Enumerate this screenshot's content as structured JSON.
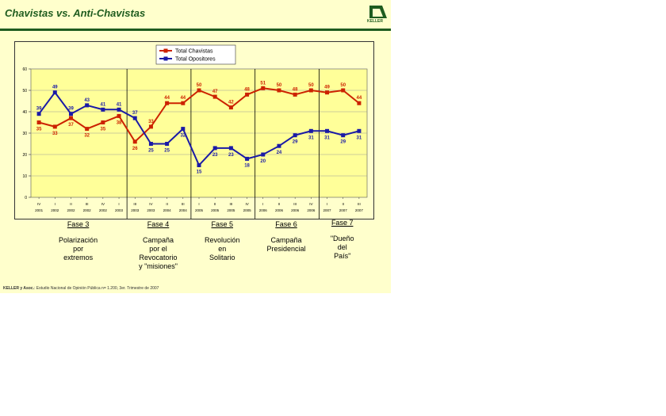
{
  "title": "Chavistas vs. Anti-Chavistas",
  "logo_text": "KELLER",
  "source": {
    "bold": "KELLER y Asoc.",
    "rest": ": Estudio Nacional de Opinión Pública n= 1.200, 3er. Trimestre de 2007"
  },
  "phases": [
    {
      "name": "Fase 3",
      "desc": [
        "Polarización",
        "por",
        "extremos"
      ]
    },
    {
      "name": "Fase 4",
      "desc": [
        "Campaña",
        "por el",
        "Revocatorio",
        "y \"misiones\""
      ]
    },
    {
      "name": "Fase 5",
      "desc": [
        "Revolución",
        "en",
        "Solitario"
      ]
    },
    {
      "name": "Fase 6",
      "desc": [
        "Campaña",
        "Presidencial"
      ]
    },
    {
      "name": "Fase 7",
      "desc": [
        "\"Dueño",
        "del",
        "País\""
      ]
    }
  ],
  "chart_data": {
    "type": "line",
    "ylim": [
      0,
      60
    ],
    "yticks": [
      0,
      10,
      20,
      30,
      40,
      50,
      60
    ],
    "grid": true,
    "legend": "top-center",
    "categories": [
      [
        "IV",
        "2001"
      ],
      [
        "I",
        "2002"
      ],
      [
        "II",
        "2002"
      ],
      [
        "III",
        "2002"
      ],
      [
        "IV",
        "2002"
      ],
      [
        "I",
        "2003"
      ],
      [
        "III",
        "2003"
      ],
      [
        "IV",
        "2003"
      ],
      [
        "II",
        "2004"
      ],
      [
        "III",
        "2004"
      ],
      [
        "I",
        "2005"
      ],
      [
        "II",
        "2005"
      ],
      [
        "III",
        "2005"
      ],
      [
        "IV",
        "2005"
      ],
      [
        "I",
        "2006"
      ],
      [
        "II",
        "2006"
      ],
      [
        "III",
        "2006"
      ],
      [
        "IV",
        "2006"
      ],
      [
        "I",
        "2007"
      ],
      [
        "II",
        "2007"
      ],
      [
        "III",
        "2007"
      ]
    ],
    "phase_bounds": [
      6,
      10,
      14,
      18
    ],
    "series": [
      {
        "name": "Total Chavistas",
        "color": "#cc2200",
        "values": [
          35,
          33,
          37,
          32,
          35,
          38,
          26,
          33,
          44,
          44,
          50,
          47,
          42,
          48,
          51,
          50,
          48,
          50,
          49,
          50,
          44
        ]
      },
      {
        "name": "Total Opositores",
        "color": "#1a1aa6",
        "values": [
          39,
          49,
          39,
          43,
          41,
          41,
          37,
          25,
          25,
          32,
          15,
          23,
          23,
          18,
          20,
          24,
          29,
          31,
          31,
          29,
          31
        ]
      }
    ]
  }
}
